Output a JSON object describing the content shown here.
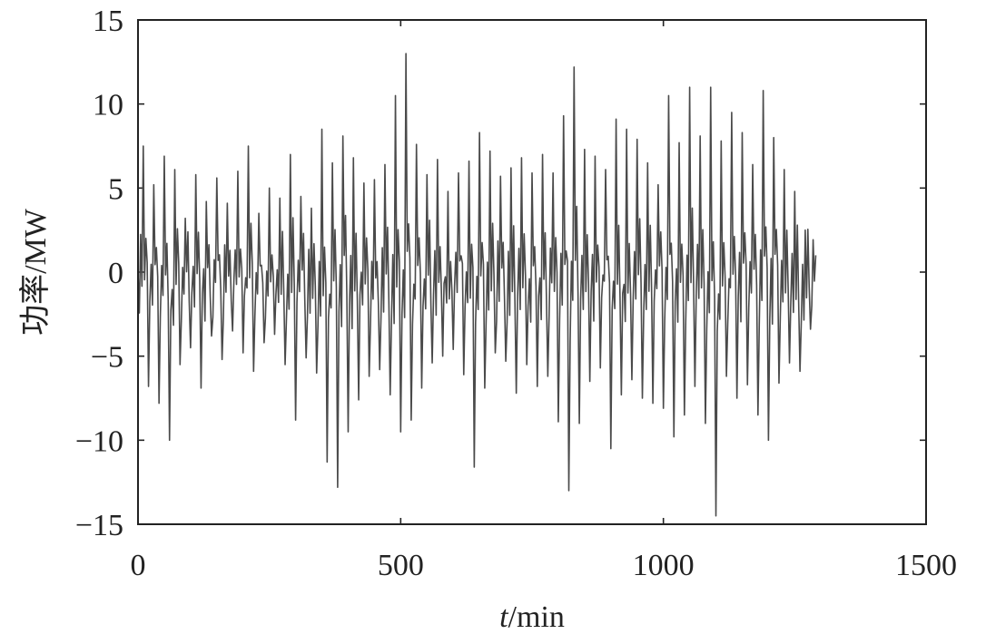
{
  "chart_data": {
    "type": "line",
    "xlabel_italic": "t",
    "xlabel_rest": "/min",
    "ylabel": "功率/MW",
    "xlim": [
      0,
      1500
    ],
    "ylim": [
      -15,
      15
    ],
    "x_ticks": [
      0,
      500,
      1000,
      1500
    ],
    "y_ticks": [
      15,
      10,
      5,
      0,
      -5,
      -10,
      -15
    ],
    "x_tick_labels": [
      "0",
      "500",
      "1000",
      "1500"
    ],
    "y_tick_labels": [
      "15",
      "10",
      "5",
      "0",
      "−5",
      "−10",
      "−15"
    ],
    "grid": false,
    "series": [
      {
        "color": "#4a4a4a",
        "x_start": 0,
        "x_step": 10,
        "values": [
          0,
          7.5,
          -6.8,
          5.2,
          -7.8,
          6.9,
          -10,
          6.1,
          -5.5,
          3.2,
          -4.5,
          5.8,
          -6.9,
          4.2,
          -3.8,
          5.6,
          -5.2,
          4.1,
          -3.5,
          6.0,
          -4.8,
          7.5,
          -5.9,
          3.5,
          -4.2,
          5.0,
          -3.7,
          4.4,
          -5.5,
          7.0,
          -8.8,
          4.5,
          -5.1,
          3.8,
          -6.0,
          8.5,
          -11.3,
          6.5,
          -12.8,
          8.1,
          -9.5,
          6.8,
          -7.6,
          5.3,
          -6.2,
          5.5,
          -5.8,
          6.4,
          -7.3,
          10.5,
          -9.5,
          13.0,
          -8.8,
          7.6,
          -6.9,
          5.8,
          -5.4,
          6.7,
          -5.0,
          4.8,
          -4.6,
          5.9,
          -6.1,
          6.6,
          -11.6,
          8.3,
          -6.9,
          7.2,
          -4.8,
          5.7,
          -5.3,
          6.2,
          -7.2,
          6.8,
          -5.5,
          5.9,
          -6.8,
          7.0,
          -6.2,
          5.9,
          -8.9,
          9.3,
          -13.0,
          12.2,
          -9.0,
          7.3,
          -6.5,
          6.9,
          -5.7,
          6.1,
          -10.5,
          9.1,
          -7.3,
          8.5,
          -6.4,
          7.9,
          -7.5,
          6.5,
          -7.8,
          5.2,
          -8.1,
          10.5,
          -9.8,
          7.7,
          -8.5,
          11.0,
          -6.8,
          8.1,
          -9.0,
          11.0,
          -14.5,
          7.8,
          -6.2,
          9.5,
          -7.5,
          8.3,
          -6.7,
          6.4,
          -8.5,
          10.8,
          -10.0,
          8.0,
          -6.6,
          6.1,
          -5.4,
          4.8,
          -5.9,
          2.5,
          -3.4,
          1.0
        ]
      }
    ]
  }
}
